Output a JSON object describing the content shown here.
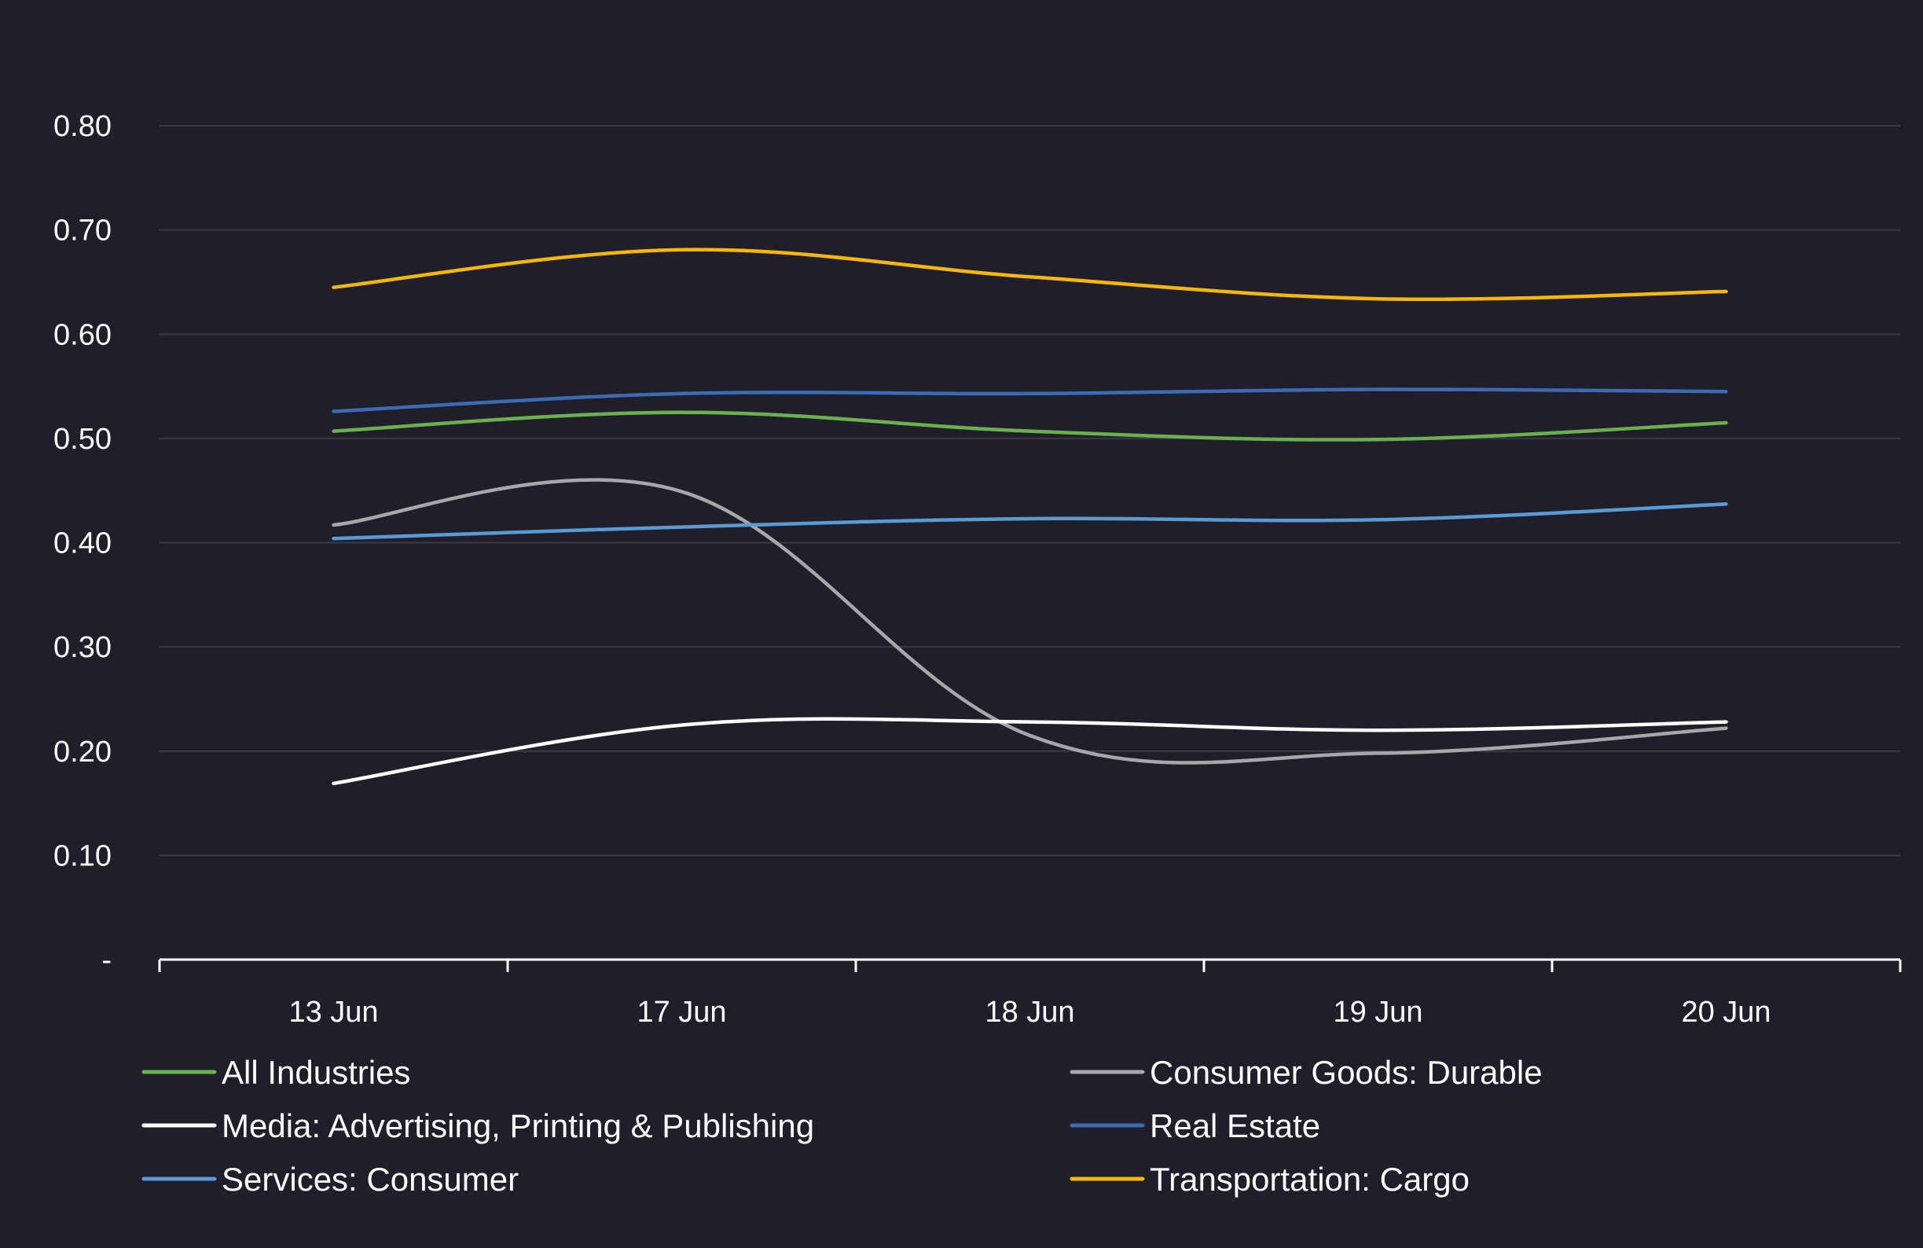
{
  "chart_data": {
    "type": "line",
    "title": "",
    "xlabel": "",
    "ylabel": "",
    "categories": [
      "13 Jun",
      "17 Jun",
      "18 Jun",
      "19 Jun",
      "20 Jun"
    ],
    "ylim": [
      0,
      0.8
    ],
    "yticks": [
      {
        "value": 0,
        "label": "-"
      },
      {
        "value": 0.1,
        "label": "0.10"
      },
      {
        "value": 0.2,
        "label": "0.20"
      },
      {
        "value": 0.3,
        "label": "0.30"
      },
      {
        "value": 0.4,
        "label": "0.40"
      },
      {
        "value": 0.5,
        "label": "0.50"
      },
      {
        "value": 0.6,
        "label": "0.60"
      },
      {
        "value": 0.7,
        "label": "0.70"
      },
      {
        "value": 0.8,
        "label": "0.80"
      }
    ],
    "grid": true,
    "legend_position": "bottom",
    "series": [
      {
        "name": "All Industries",
        "color": "#6ab04c",
        "values": [
          0.507,
          0.525,
          0.507,
          0.499,
          0.515
        ]
      },
      {
        "name": "Consumer Goods: Durable",
        "color": "#a7a7a7",
        "values": [
          0.417,
          0.449,
          0.215,
          0.198,
          0.222
        ]
      },
      {
        "name": "Media: Advertising, Printing & Publishing",
        "color": "#ffffff",
        "values": [
          0.169,
          0.225,
          0.228,
          0.22,
          0.228
        ]
      },
      {
        "name": "Real Estate",
        "color": "#3b6bb3",
        "values": [
          0.526,
          0.543,
          0.543,
          0.547,
          0.545
        ]
      },
      {
        "name": "Services: Consumer",
        "color": "#5b9bd5",
        "values": [
          0.404,
          0.415,
          0.423,
          0.422,
          0.437
        ]
      },
      {
        "name": "Transportation: Cargo",
        "color": "#f5b800",
        "values": [
          0.645,
          0.681,
          0.655,
          0.634,
          0.641
        ]
      }
    ]
  }
}
